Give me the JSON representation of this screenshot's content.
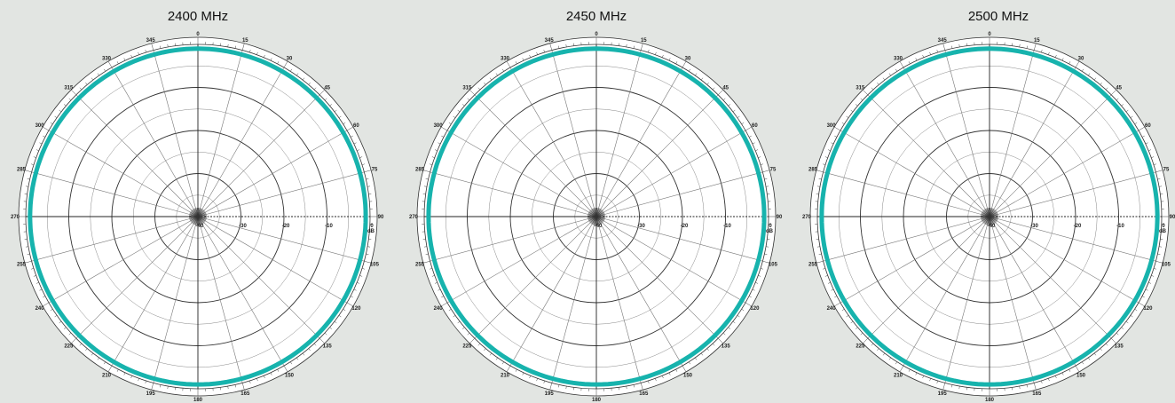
{
  "chart_data": [
    {
      "type": "polar",
      "title": "2400 MHz",
      "angle_labels": [
        "0",
        "15",
        "30",
        "45",
        "60",
        "75",
        "90",
        "105",
        "120",
        "135",
        "150",
        "165",
        "180",
        "195",
        "210",
        "225",
        "240",
        "255",
        "270",
        "285",
        "300",
        "315",
        "330",
        "345"
      ],
      "radial_labels": [
        "-40",
        "-30",
        "-20",
        "-10",
        "0"
      ],
      "radial_unit": "dB",
      "rlim": [
        -40,
        0
      ],
      "series": [
        {
          "color": "#17b3ad",
          "angles_deg": [
            0,
            30,
            60,
            90,
            120,
            150,
            180,
            210,
            240,
            270,
            300,
            330
          ],
          "values_db": [
            -1,
            -1,
            -1,
            -1,
            -1,
            -1,
            -1,
            -1,
            -1,
            -1,
            -1,
            -1
          ]
        }
      ]
    },
    {
      "type": "polar",
      "title": "2450 MHz",
      "angle_labels": [
        "0",
        "15",
        "30",
        "45",
        "60",
        "75",
        "90",
        "105",
        "120",
        "135",
        "150",
        "165",
        "180",
        "195",
        "210",
        "225",
        "240",
        "255",
        "270",
        "285",
        "300",
        "315",
        "330",
        "345"
      ],
      "radial_labels": [
        "-40",
        "-30",
        "-20",
        "-10",
        "0"
      ],
      "radial_unit": "dB",
      "rlim": [
        -40,
        0
      ],
      "series": [
        {
          "color": "#17b3ad",
          "angles_deg": [
            0,
            30,
            60,
            90,
            120,
            150,
            180,
            210,
            240,
            270,
            300,
            330
          ],
          "values_db": [
            -1,
            -1,
            -1,
            -1,
            -1,
            -1,
            -1,
            -1,
            -1,
            -1,
            -1,
            -1
          ]
        }
      ]
    },
    {
      "type": "polar",
      "title": "2500 MHz",
      "angle_labels": [
        "0",
        "15",
        "30",
        "45",
        "60",
        "75",
        "90",
        "105",
        "120",
        "135",
        "150",
        "165",
        "180",
        "195",
        "210",
        "225",
        "240",
        "255",
        "270",
        "285",
        "300",
        "315",
        "330",
        "345"
      ],
      "radial_labels": [
        "-40",
        "-30",
        "-20",
        "-10",
        "0"
      ],
      "radial_unit": "dB",
      "rlim": [
        -40,
        0
      ],
      "series": [
        {
          "color": "#17b3ad",
          "angles_deg": [
            0,
            30,
            60,
            90,
            120,
            150,
            180,
            210,
            240,
            270,
            300,
            330
          ],
          "values_db": [
            -1,
            -1,
            -1,
            -1,
            -1,
            -1,
            -1,
            -1,
            -1,
            -1,
            -1,
            -1
          ]
        }
      ]
    }
  ]
}
